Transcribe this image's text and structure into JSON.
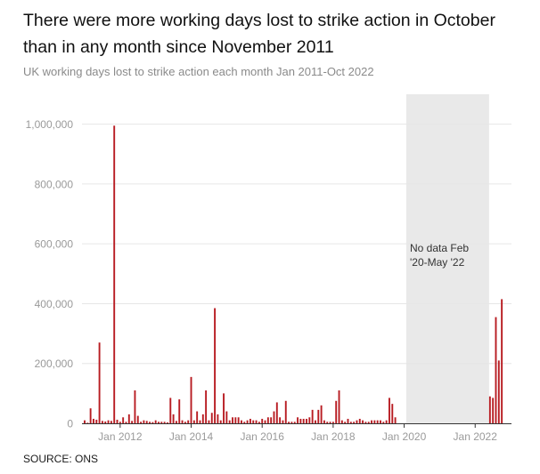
{
  "title": "There were more working days lost to strike action in October than in any month since November 2011",
  "subtitle": "UK working days lost to strike action each month Jan 2011-Oct 2022",
  "source": "SOURCE: ONS",
  "colors": {
    "bar": "#b81c22",
    "shade": "#e9e9e9",
    "grid": "#e6e6e6",
    "axis_text": "#9a9a9a"
  },
  "chart_data": {
    "type": "bar",
    "title": "There were more working days lost to strike action in October than in any month since November 2011",
    "subtitle": "UK working days lost to strike action each month Jan 2011-Oct 2022",
    "xlabel": "",
    "ylabel": "",
    "ylim": [
      0,
      1100000
    ],
    "grid": true,
    "y_ticks": [
      0,
      200000,
      400000,
      600000,
      800000,
      1000000
    ],
    "y_tick_labels": [
      "0",
      "200,000",
      "400,000",
      "600,000",
      "800,000",
      "1,000,000"
    ],
    "x_tick_labels": [
      {
        "date": "2012-01",
        "label": "Jan 2012"
      },
      {
        "date": "2014-01",
        "label": "Jan 2014"
      },
      {
        "date": "2016-01",
        "label": "Jan 2016"
      },
      {
        "date": "2018-01",
        "label": "Jan 2018"
      },
      {
        "date": "2020-01",
        "label": "Jan 2020"
      },
      {
        "date": "2022-01",
        "label": "Jan 2022"
      }
    ],
    "shaded_region": {
      "start": "2020-02",
      "end": "2022-05",
      "label_lines": [
        "No data Feb",
        "'20-May '22"
      ]
    },
    "series": [
      {
        "start": "2011-01",
        "values": [
          10000,
          2000,
          50000,
          15000,
          12000,
          270000,
          8000,
          6000,
          10000,
          8000,
          995000,
          12000,
          5000,
          20000,
          5000,
          30000,
          8000,
          110000,
          25000,
          5000,
          10000,
          8000,
          5000,
          4000,
          10000,
          5000,
          5000,
          5000,
          3000,
          85000,
          30000,
          8000,
          80000,
          10000,
          5000,
          10000,
          155000,
          10000,
          40000,
          10000,
          30000,
          110000,
          10000,
          35000,
          385000,
          30000,
          10000,
          100000,
          40000,
          10000,
          20000,
          20000,
          20000,
          10000,
          5000,
          10000,
          15000,
          10000,
          10000,
          5000,
          15000,
          10000,
          20000,
          20000,
          40000,
          70000,
          20000,
          10000,
          75000,
          5000,
          5000,
          5000,
          20000,
          15000,
          15000,
          15000,
          20000,
          45000,
          10000,
          45000,
          60000,
          10000,
          5000,
          5000,
          5000,
          75000,
          110000,
          10000,
          5000,
          15000,
          5000,
          5000,
          10000,
          15000,
          10000,
          5000,
          5000,
          10000,
          10000,
          10000,
          10000,
          5000,
          10000,
          85000,
          65000,
          20000
        ]
      },
      {
        "start": "2022-06",
        "values": [
          90000,
          85000,
          355000,
          210000,
          415000
        ]
      }
    ]
  }
}
